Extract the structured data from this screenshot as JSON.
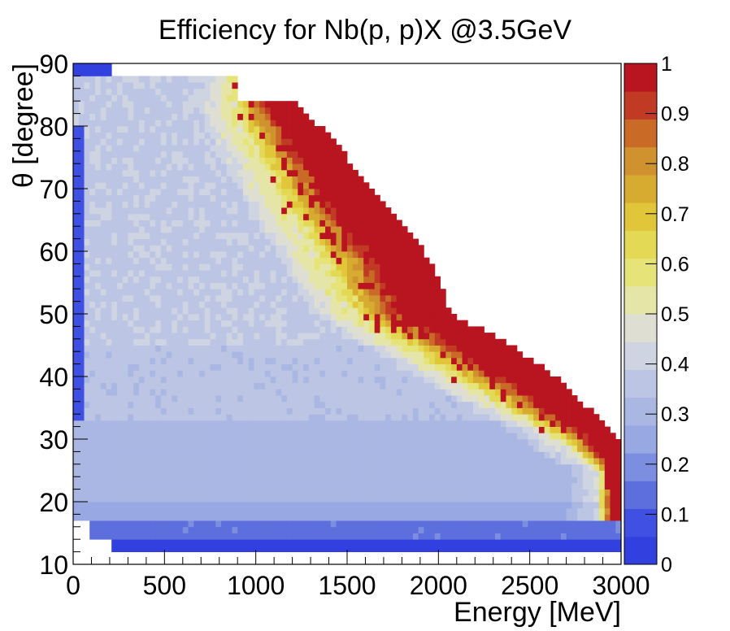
{
  "chart_data": {
    "type": "heatmap",
    "title": "Efficiency for Nb(p, p)X @3.5GeV",
    "xlabel": "Energy [MeV]",
    "ylabel": "θ [degree]",
    "xlim": [
      0,
      3000
    ],
    "ylim": [
      10,
      90
    ],
    "zlim": [
      0,
      1
    ],
    "x_ticks": [
      0,
      500,
      1000,
      1500,
      2000,
      2500,
      3000
    ],
    "y_ticks": [
      10,
      20,
      30,
      40,
      50,
      60,
      70,
      80,
      90
    ],
    "z_ticks": [
      0,
      0.1,
      0.2,
      0.3,
      0.4,
      0.5,
      0.6,
      0.7,
      0.8,
      0.9,
      1
    ],
    "x_tick_labels": [
      "0",
      "500",
      "1000",
      "1500",
      "2000",
      "2500",
      "3000"
    ],
    "y_tick_labels": [
      "10",
      "20",
      "30",
      "40",
      "50",
      "60",
      "70",
      "80",
      "90"
    ],
    "z_tick_labels": [
      "0",
      "0.1",
      "0.2",
      "0.3",
      "0.4",
      "0.5",
      "0.6",
      "0.7",
      "0.8",
      "0.9",
      "1"
    ],
    "x_bin_width": 30,
    "y_bin_width": 1,
    "palette": [
      "#3340e0",
      "#3f50e2",
      "#5d6edd",
      "#7b8ee0",
      "#98a8e3",
      "#aab7e3",
      "#bcc5e3",
      "#cfd4e3",
      "#dedfd2",
      "#e5e5a8",
      "#e6e478",
      "#e3d955",
      "#e0c638",
      "#d7ab30",
      "#cf922e",
      "#c96a26",
      "#c03a24",
      "#b91520"
    ],
    "grid": false,
    "legend": "colorbar-right",
    "description_rows": [
      {
        "theta_range": [
          12,
          14
        ],
        "e_range": [
          210,
          3000
        ],
        "value": 0.05
      },
      {
        "theta_range": [
          14,
          17
        ],
        "e_range": [
          90,
          3000
        ],
        "value": 0.15
      },
      {
        "theta_range": [
          17,
          33
        ],
        "e_range": [
          60,
          3000
        ],
        "value": 0.25
      },
      {
        "theta_range": [
          33,
          88
        ],
        "e_range": [
          0,
          3000
        ],
        "value": 0.35
      },
      {
        "theta_range": [
          88,
          90
        ],
        "e_range": [
          0,
          210
        ],
        "value": 0.05
      }
    ],
    "red_edge": [
      {
        "theta": 85,
        "e_max": 1170,
        "e_min": 870
      },
      {
        "theta": 80,
        "e_max": 1350,
        "e_min": 900
      },
      {
        "theta": 75,
        "e_max": 1500,
        "e_min": 990
      },
      {
        "theta": 70,
        "e_max": 1620,
        "e_min": 1080
      },
      {
        "theta": 65,
        "e_max": 1770,
        "e_min": 1170
      },
      {
        "theta": 60,
        "e_max": 1920,
        "e_min": 1290
      },
      {
        "theta": 55,
        "e_max": 2010,
        "e_min": 1380
      },
      {
        "theta": 50,
        "e_max": 2070,
        "e_min": 1500
      },
      {
        "theta": 45,
        "e_max": 2400,
        "e_min": 1770
      },
      {
        "theta": 40,
        "e_max": 2640,
        "e_min": 2040
      },
      {
        "theta": 35,
        "e_max": 2820,
        "e_min": 2340
      },
      {
        "theta": 30,
        "e_max": 3000,
        "e_min": 2640
      },
      {
        "theta": 25,
        "e_max": 3000,
        "e_min": 2880
      }
    ]
  }
}
